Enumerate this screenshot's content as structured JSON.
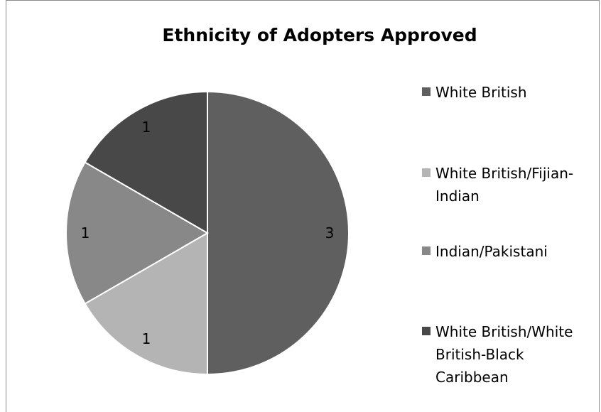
{
  "chart_data": {
    "type": "pie",
    "title": "Ethnicity of Adopters Approved",
    "categories": [
      "White British",
      "White British/Fijian-Indian",
      "Indian/Pakistani",
      "White British/White British-Black Caribbean"
    ],
    "legend_labels": [
      "White British",
      "White British/Fijian-\nIndian",
      "Indian/Pakistani",
      "White British/White\nBritish-Black\nCaribbean"
    ],
    "values": [
      3,
      1,
      1,
      1
    ],
    "data_labels": [
      "3",
      "1",
      "1",
      "1"
    ],
    "colors": [
      "#5f5f5f",
      "#b4b4b4",
      "#888888",
      "#484848"
    ],
    "start_angle": "12 o'clock",
    "direction": "clockwise",
    "legend_position": "right"
  }
}
